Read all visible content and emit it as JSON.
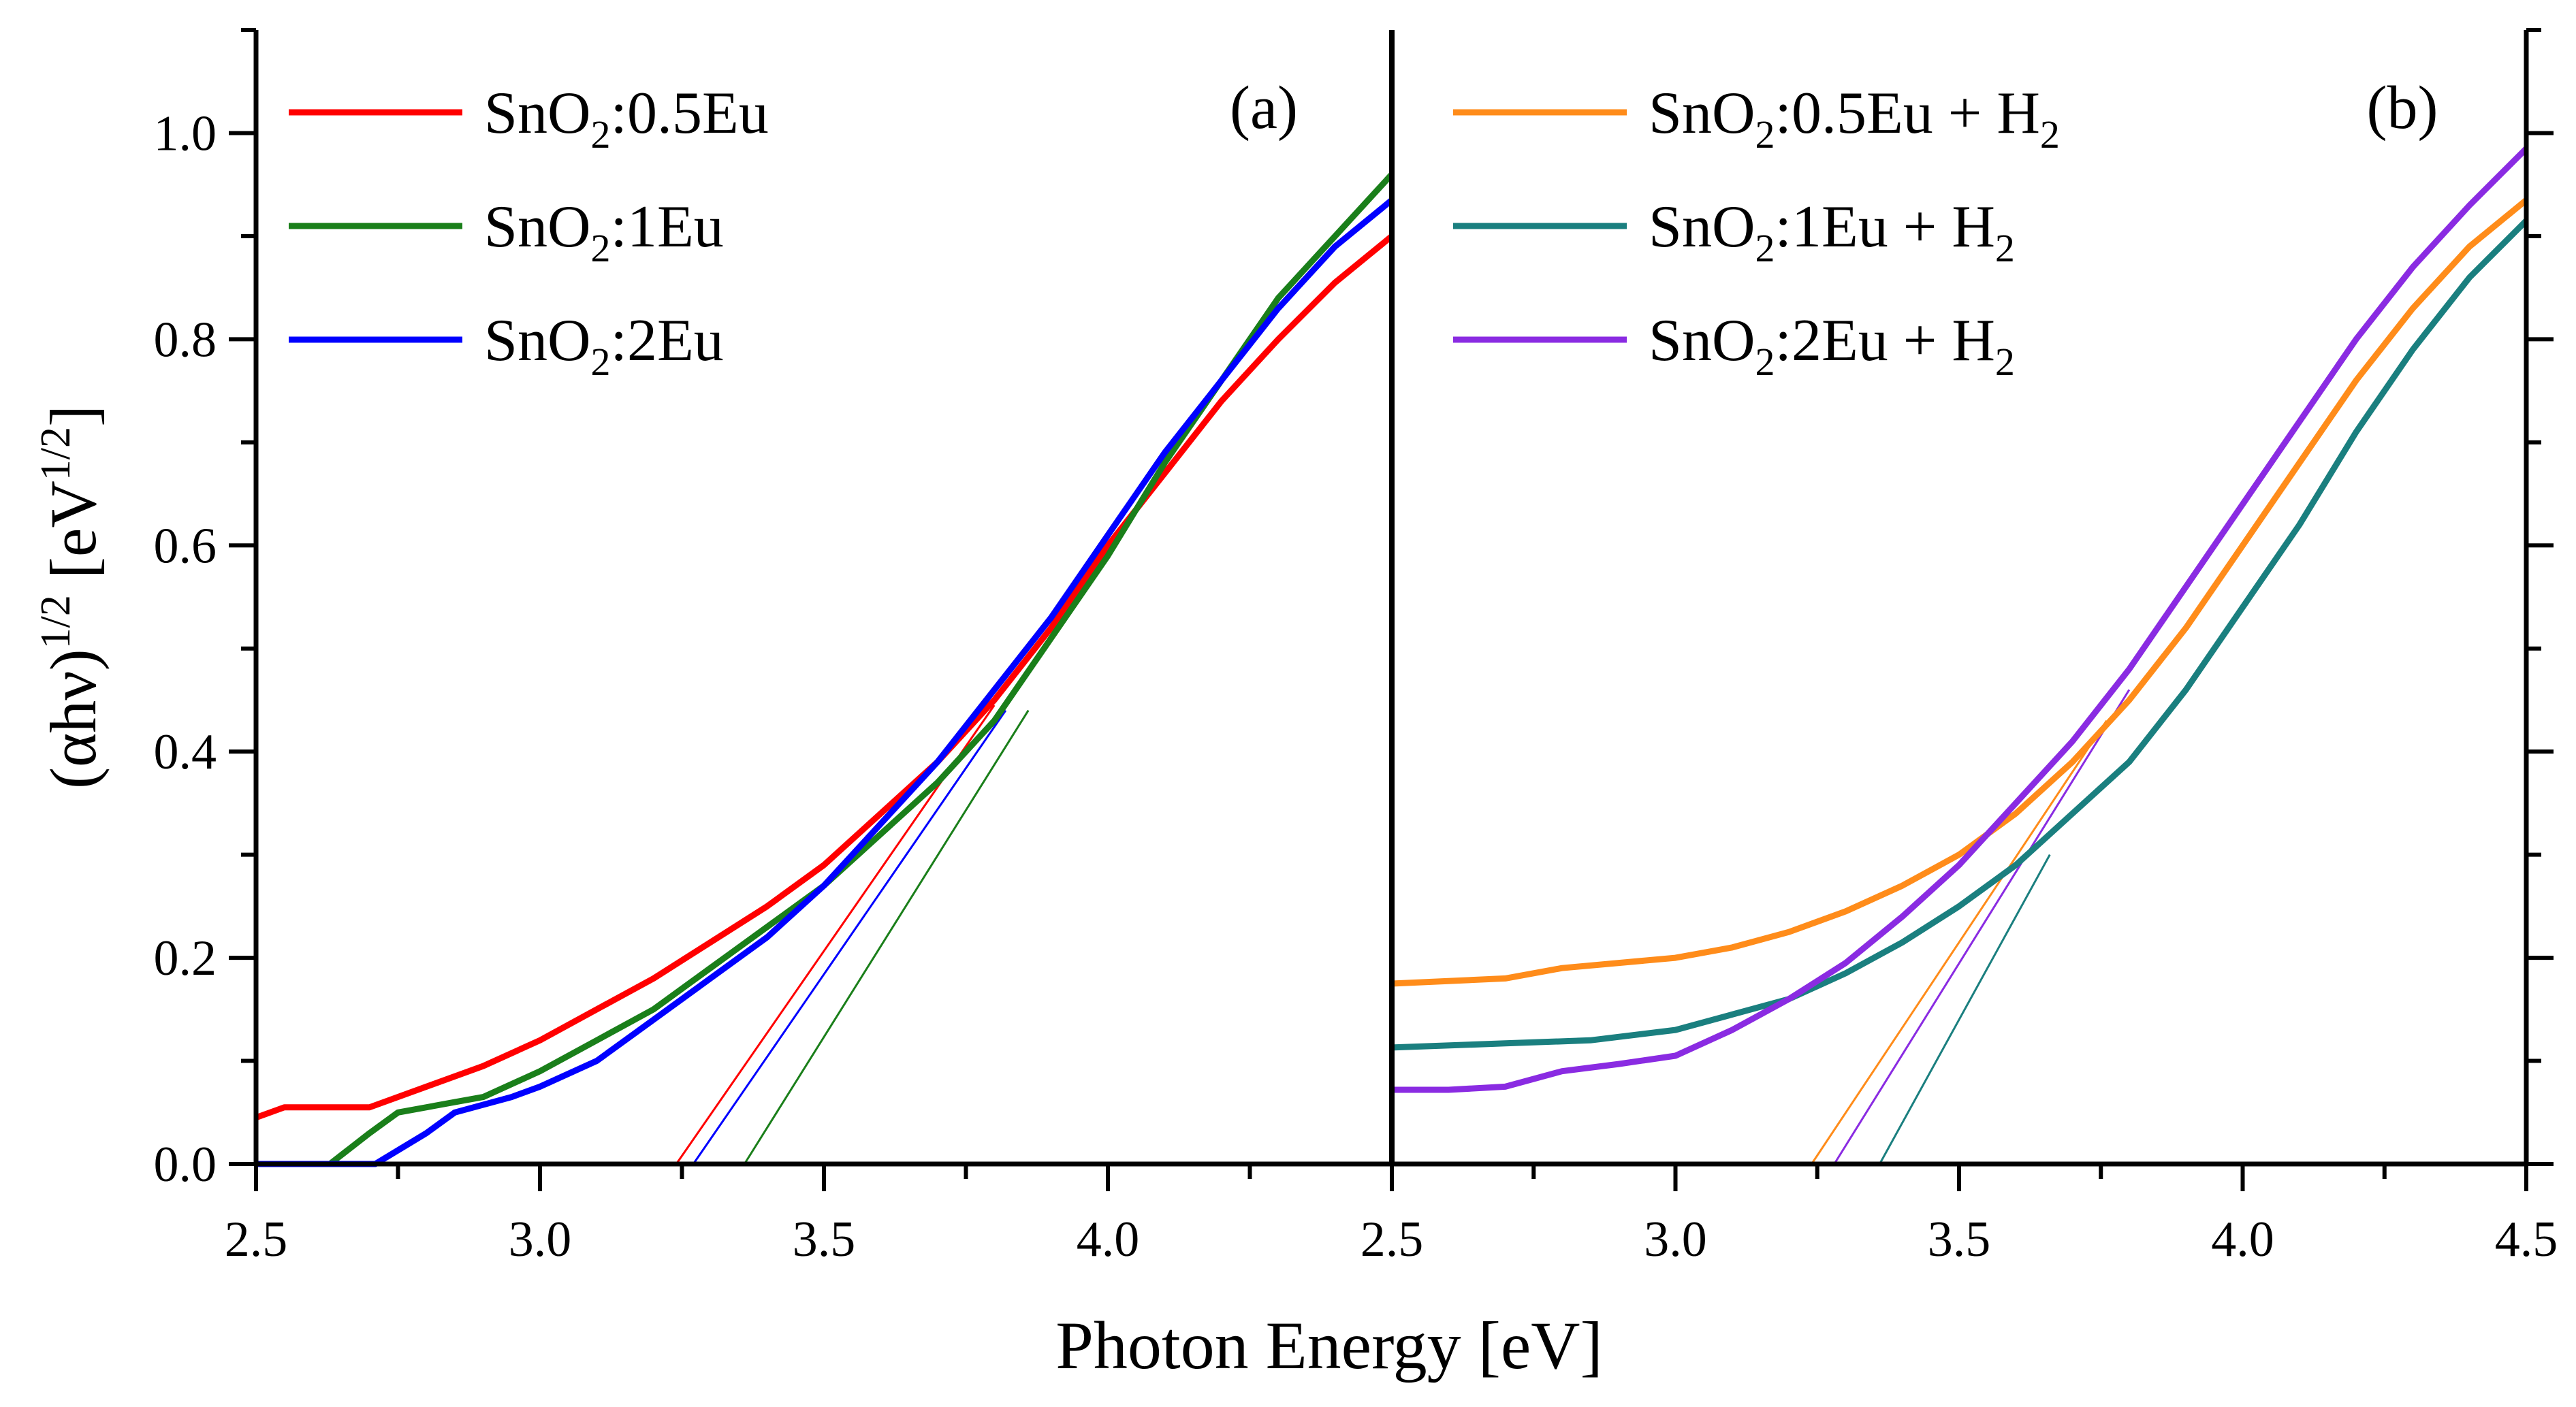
{
  "chart_data": [
    {
      "type": "line",
      "panel_label": "(a)",
      "xlim": [
        2.5,
        4.5
      ],
      "ylim": [
        0,
        1.1
      ],
      "xticks": [
        "2.5",
        "3.0",
        "3.5",
        "4.0"
      ],
      "yticks": [
        "0.0",
        "0.2",
        "0.4",
        "0.6",
        "0.8",
        "1.0"
      ],
      "legend_placement": "top-left",
      "series": [
        {
          "name": "SnO2:0.5Eu",
          "label_main": "SnO",
          "label_sub": "2",
          "label_rest": ":0.5Eu",
          "label_sub2": "",
          "color": "#ff0000",
          "x": [
            2.5,
            2.55,
            2.6,
            2.7,
            2.8,
            2.9,
            3.0,
            3.1,
            3.2,
            3.3,
            3.4,
            3.5,
            3.6,
            3.7,
            3.8,
            3.9,
            4.0,
            4.1,
            4.2,
            4.3,
            4.4,
            4.5
          ],
          "y": [
            0.045,
            0.055,
            0.055,
            0.055,
            0.075,
            0.095,
            0.12,
            0.15,
            0.18,
            0.215,
            0.25,
            0.29,
            0.34,
            0.39,
            0.45,
            0.52,
            0.6,
            0.67,
            0.74,
            0.8,
            0.855,
            0.9
          ],
          "tangent": {
            "x": [
              3.24,
              3.8
            ],
            "y": [
              0,
              0.445
            ]
          }
        },
        {
          "name": "SnO2:1Eu",
          "label_main": "SnO",
          "label_sub": "2",
          "label_rest": ":1Eu",
          "label_sub2": "",
          "color": "#1a7f1a",
          "x": [
            2.5,
            2.63,
            2.7,
            2.75,
            2.85,
            2.9,
            3.0,
            3.1,
            3.2,
            3.3,
            3.4,
            3.5,
            3.6,
            3.7,
            3.8,
            3.9,
            4.0,
            4.1,
            4.2,
            4.3,
            4.4,
            4.5
          ],
          "y": [
            0,
            0,
            0.03,
            0.05,
            0.06,
            0.065,
            0.09,
            0.12,
            0.15,
            0.19,
            0.23,
            0.27,
            0.32,
            0.37,
            0.43,
            0.51,
            0.59,
            0.68,
            0.76,
            0.84,
            0.9,
            0.96
          ],
          "tangent": {
            "x": [
              3.36,
              3.86
            ],
            "y": [
              0,
              0.44
            ]
          }
        },
        {
          "name": "SnO2:2Eu",
          "label_main": "SnO",
          "label_sub": "2",
          "label_rest": ":2Eu",
          "label_sub2": "",
          "color": "#0000ff",
          "x": [
            2.5,
            2.71,
            2.8,
            2.85,
            2.95,
            3.0,
            3.1,
            3.2,
            3.3,
            3.4,
            3.5,
            3.6,
            3.7,
            3.8,
            3.9,
            4.0,
            4.1,
            4.2,
            4.3,
            4.4,
            4.5
          ],
          "y": [
            0,
            0,
            0.03,
            0.05,
            0.065,
            0.075,
            0.1,
            0.14,
            0.18,
            0.22,
            0.27,
            0.33,
            0.39,
            0.46,
            0.53,
            0.61,
            0.69,
            0.76,
            0.83,
            0.89,
            0.935
          ],
          "tangent": {
            "x": [
              3.27,
              3.82
            ],
            "y": [
              0,
              0.44
            ]
          }
        }
      ]
    },
    {
      "type": "line",
      "panel_label": "(b)",
      "xlim": [
        2.5,
        4.5
      ],
      "ylim": [
        0,
        1.1
      ],
      "xticks": [
        "2.5",
        "3.0",
        "3.5",
        "4.0",
        "4.5"
      ],
      "legend_placement": "top-left",
      "series": [
        {
          "name": "SnO2:0.5Eu + H2",
          "label_main": "SnO",
          "label_sub": "2",
          "label_rest": ":0.5Eu + H",
          "label_sub2": "2",
          "color": "#ff8c1a",
          "x": [
            2.5,
            2.7,
            2.8,
            3.0,
            3.1,
            3.2,
            3.3,
            3.4,
            3.5,
            3.6,
            3.7,
            3.8,
            3.9,
            4.0,
            4.1,
            4.2,
            4.3,
            4.4,
            4.5
          ],
          "y": [
            0.175,
            0.18,
            0.19,
            0.2,
            0.21,
            0.225,
            0.245,
            0.27,
            0.3,
            0.34,
            0.39,
            0.45,
            0.52,
            0.6,
            0.68,
            0.76,
            0.83,
            0.89,
            0.935
          ],
          "tangent": {
            "x": [
              3.24,
              3.76
            ],
            "y": [
              0,
              0.43
            ]
          }
        },
        {
          "name": "SnO2:1Eu + H2",
          "label_main": "SnO",
          "label_sub": "2",
          "label_rest": ":1Eu + H",
          "label_sub2": "2",
          "color": "#1a7f7f",
          "x": [
            2.5,
            2.7,
            2.85,
            3.0,
            3.1,
            3.2,
            3.3,
            3.4,
            3.5,
            3.6,
            3.7,
            3.8,
            3.9,
            4.0,
            4.1,
            4.2,
            4.3,
            4.4,
            4.5
          ],
          "y": [
            0.113,
            0.117,
            0.12,
            0.13,
            0.145,
            0.16,
            0.185,
            0.215,
            0.25,
            0.29,
            0.34,
            0.39,
            0.46,
            0.54,
            0.62,
            0.71,
            0.79,
            0.86,
            0.915
          ],
          "tangent": {
            "x": [
              3.36,
              3.66
            ],
            "y": [
              0,
              0.3
            ]
          }
        },
        {
          "name": "SnO2:2Eu + H2",
          "label_main": "SnO",
          "label_sub": "2",
          "label_rest": ":2Eu + H",
          "label_sub2": "2",
          "color": "#8a2be2",
          "x": [
            2.5,
            2.6,
            2.7,
            2.8,
            2.9,
            3.0,
            3.1,
            3.2,
            3.3,
            3.4,
            3.5,
            3.6,
            3.7,
            3.8,
            3.9,
            4.0,
            4.1,
            4.2,
            4.3,
            4.4,
            4.5
          ],
          "y": [
            0.072,
            0.072,
            0.075,
            0.09,
            0.097,
            0.105,
            0.13,
            0.16,
            0.195,
            0.24,
            0.29,
            0.35,
            0.41,
            0.48,
            0.56,
            0.64,
            0.72,
            0.8,
            0.87,
            0.93,
            0.985
          ],
          "tangent": {
            "x": [
              3.28,
              3.8
            ],
            "y": [
              0,
              0.46
            ]
          }
        }
      ]
    }
  ],
  "axes": {
    "xlabel": "Photon Energy [eV]",
    "ylabel_main": "(αhν)",
    "ylabel_sup": "1/2",
    "ylabel_unit": " [eV",
    "ylabel_unit_sup": "1/2",
    "ylabel_close": "]"
  }
}
